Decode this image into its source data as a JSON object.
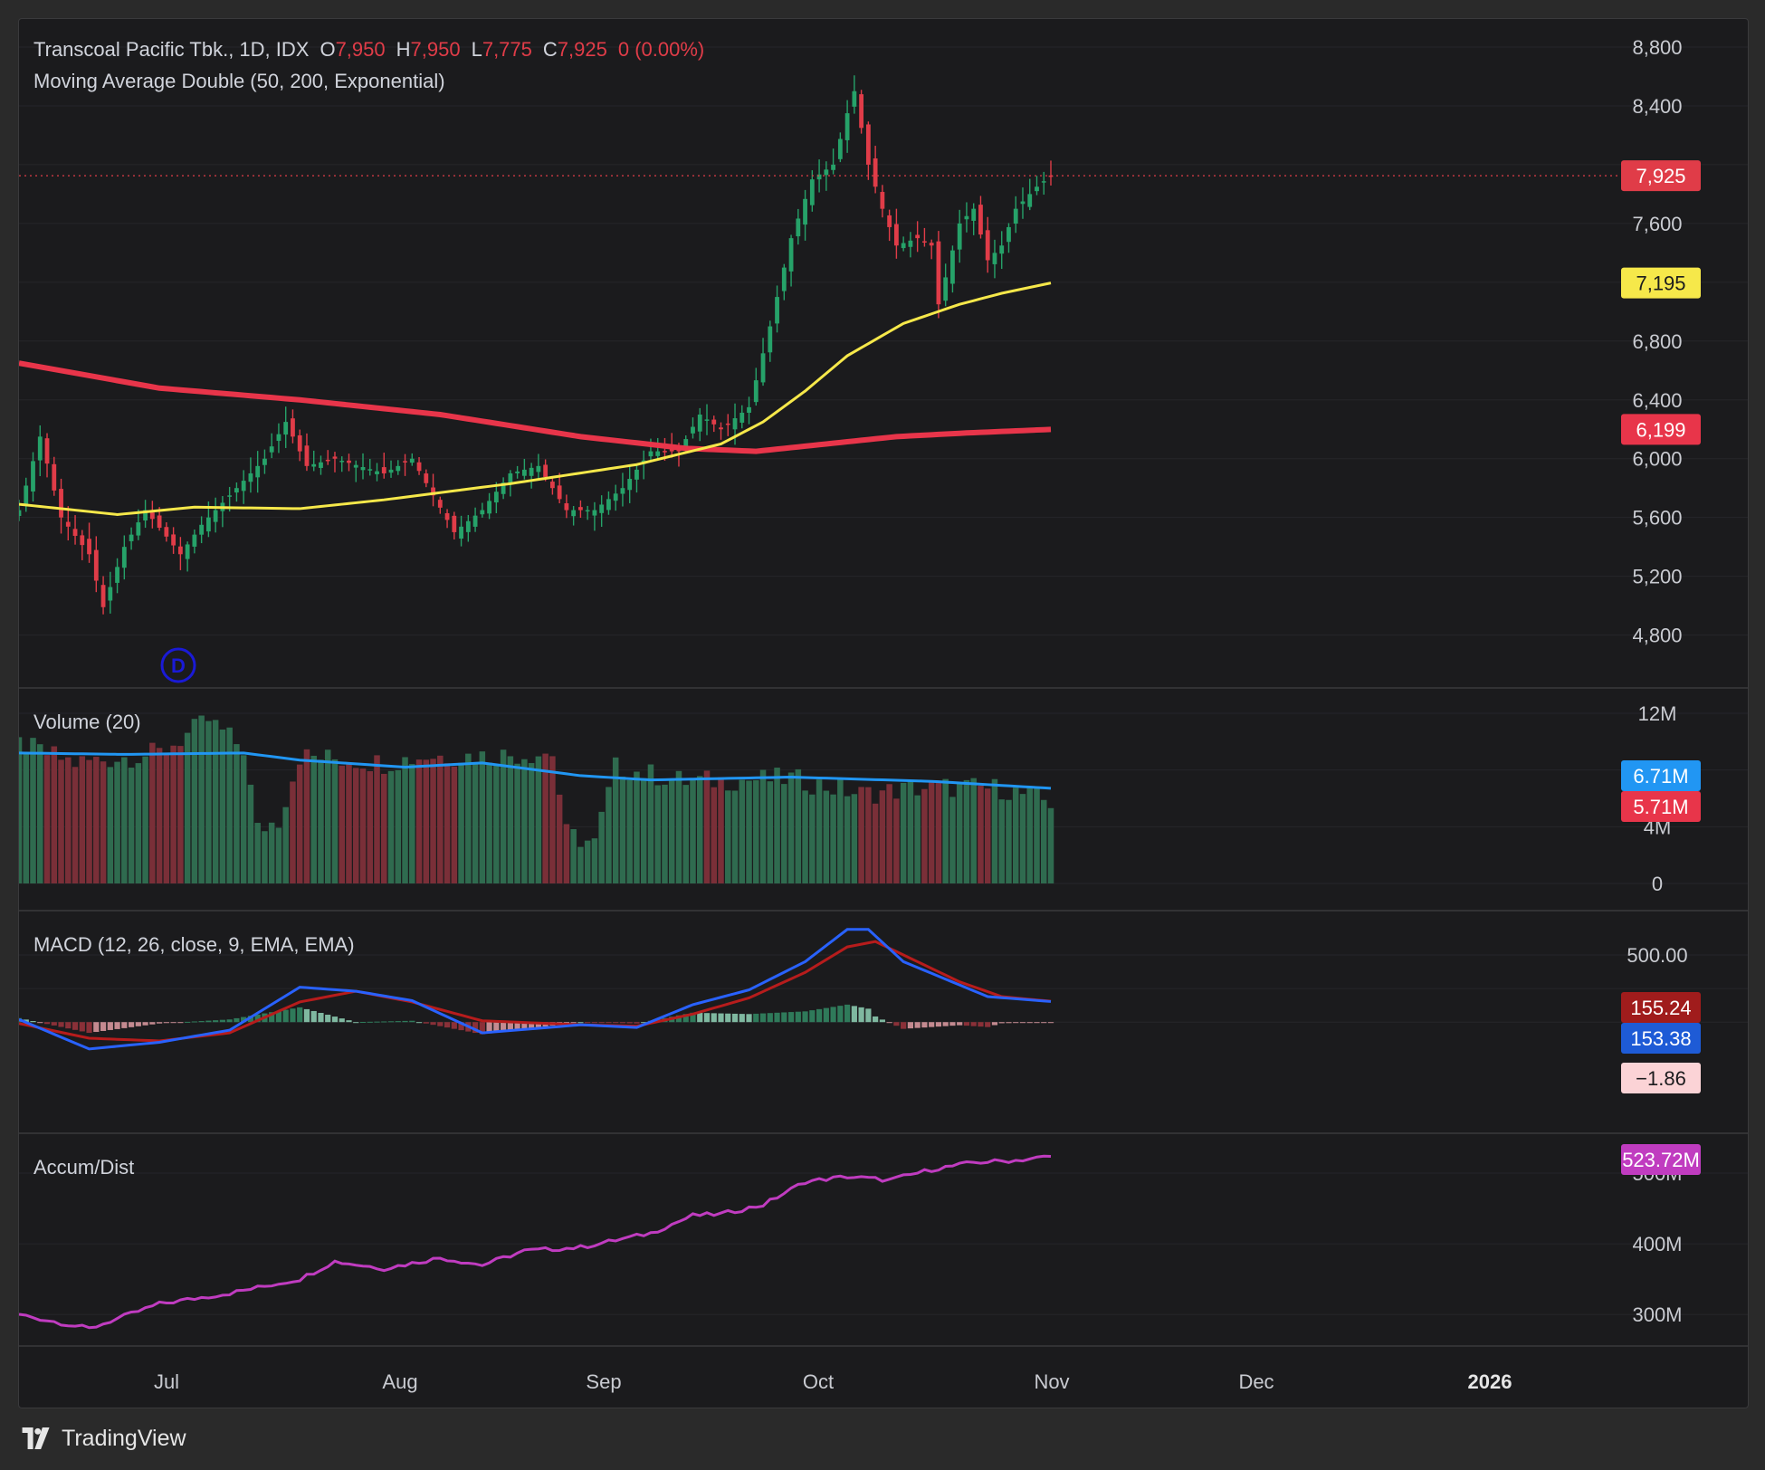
{
  "header": {
    "symbol_line": "Transcoal Pacific Tbk., 1D, IDX",
    "open_label": "O",
    "open_value": "7,950",
    "high_label": "H",
    "high_value": "7,950",
    "low_label": "L",
    "low_value": "7,775",
    "close_label": "C",
    "close_value": "7,925",
    "change_value": "0 (0.00%)",
    "indicator_line": "Moving Average Double (50, 200, Exponential)"
  },
  "panes": {
    "volume_label": "Volume (20)",
    "macd_label": "MACD (12, 26, close, 9, EMA, EMA)",
    "ad_label": "Accum/Dist"
  },
  "badges": {
    "last_price": "7,925",
    "ema50": "7,195",
    "ema200": "6,199",
    "vol_ma": "6.71M",
    "vol_last": "5.71M",
    "macd_signal": "155.24",
    "macd_line": "153.38",
    "macd_hist": "−1.86",
    "ad_value": "523.72M"
  },
  "axes": {
    "price_ticks": [
      "8,800",
      "8,400",
      "7,600",
      "6,800",
      "6,400",
      "6,000",
      "5,600",
      "5,200",
      "4,800"
    ],
    "volume_ticks": [
      "12M",
      "4M",
      "0"
    ],
    "macd_ticks": [
      "500.00"
    ],
    "ad_ticks": [
      "500M",
      "400M",
      "300M"
    ],
    "date_labels": [
      "Jul",
      "Aug",
      "Sep",
      "Oct",
      "Nov",
      "Dec",
      "2026"
    ]
  },
  "marker": {
    "letter": "D"
  },
  "footer": {
    "brand": "TradingView"
  },
  "colors": {
    "up": "#26a269",
    "down": "#e03c48",
    "ema50": "#f6e84a",
    "ema200": "#e8354a",
    "macd": "#2962ff",
    "signal": "#b71c1c",
    "ad": "#c03cc0",
    "vol_ma": "#2196f3"
  },
  "chart_data": {
    "type": "candlestick",
    "title": "Transcoal Pacific Tbk., 1D, IDX",
    "price_range": [
      4600,
      8900
    ],
    "series": [
      {
        "name": "Moving Average Double (50, 200, Exponential)",
        "values": [
          7195,
          6199
        ]
      },
      {
        "name": "Volume (20)",
        "values": [
          6.71,
          5.71
        ],
        "unit": "M"
      },
      {
        "name": "MACD (12, 26, close, 9, EMA, EMA)",
        "values": [
          153.38,
          155.24,
          -1.86
        ]
      },
      {
        "name": "Accum/Dist",
        "values": [
          523.72
        ],
        "unit": "M"
      }
    ],
    "ohlc_keyframes_price": [
      [
        0,
        5650
      ],
      [
        3,
        6150
      ],
      [
        6,
        5600
      ],
      [
        10,
        5350
      ],
      [
        12,
        4990
      ],
      [
        15,
        5400
      ],
      [
        18,
        5650
      ],
      [
        23,
        5350
      ],
      [
        26,
        5550
      ],
      [
        30,
        5750
      ],
      [
        35,
        6000
      ],
      [
        38,
        6250
      ],
      [
        41,
        5950
      ],
      [
        45,
        6000
      ],
      [
        52,
        5900
      ],
      [
        56,
        6000
      ],
      [
        59,
        5750
      ],
      [
        62,
        5500
      ],
      [
        66,
        5650
      ],
      [
        70,
        5900
      ],
      [
        74,
        5950
      ],
      [
        78,
        5650
      ],
      [
        82,
        5650
      ],
      [
        86,
        5800
      ],
      [
        90,
        6050
      ],
      [
        94,
        6050
      ],
      [
        97,
        6300
      ],
      [
        100,
        6200
      ],
      [
        104,
        6350
      ],
      [
        107,
        6900
      ],
      [
        110,
        7500
      ],
      [
        113,
        7900
      ],
      [
        116,
        8000
      ],
      [
        118,
        8350
      ],
      [
        119,
        8500
      ],
      [
        121,
        8000
      ],
      [
        123,
        7700
      ],
      [
        125,
        7450
      ],
      [
        128,
        7500
      ],
      [
        130,
        7450
      ],
      [
        131,
        7050
      ],
      [
        134,
        7600
      ],
      [
        136,
        7700
      ],
      [
        138,
        7350
      ],
      [
        140,
        7450
      ],
      [
        142,
        7700
      ],
      [
        145,
        7850
      ],
      [
        147,
        7925
      ]
    ],
    "ema50_keyframes_price": [
      [
        0,
        5690
      ],
      [
        14,
        5620
      ],
      [
        25,
        5670
      ],
      [
        40,
        5660
      ],
      [
        52,
        5720
      ],
      [
        70,
        5830
      ],
      [
        88,
        5960
      ],
      [
        100,
        6100
      ],
      [
        106,
        6250
      ],
      [
        112,
        6460
      ],
      [
        118,
        6700
      ],
      [
        126,
        6920
      ],
      [
        134,
        7050
      ],
      [
        140,
        7125
      ],
      [
        147,
        7195
      ]
    ],
    "ema200_keyframes_price": [
      [
        0,
        6650
      ],
      [
        20,
        6480
      ],
      [
        40,
        6400
      ],
      [
        60,
        6300
      ],
      [
        80,
        6150
      ],
      [
        95,
        6070
      ],
      [
        105,
        6050
      ],
      [
        115,
        6100
      ],
      [
        125,
        6150
      ],
      [
        135,
        6175
      ],
      [
        147,
        6199
      ]
    ],
    "volume_keyframes_m": [
      [
        0,
        9.8
      ],
      [
        8,
        8.5
      ],
      [
        20,
        9.2
      ],
      [
        24,
        10.5
      ],
      [
        27,
        11.5
      ],
      [
        32,
        9.5
      ],
      [
        34,
        3.8
      ],
      [
        37,
        4.5
      ],
      [
        40,
        9.0
      ],
      [
        52,
        8.5
      ],
      [
        58,
        9.0
      ],
      [
        66,
        9.0
      ],
      [
        76,
        9.2
      ],
      [
        78,
        3.5
      ],
      [
        82,
        2.8
      ],
      [
        85,
        8.2
      ],
      [
        95,
        7.2
      ],
      [
        110,
        7.4
      ],
      [
        120,
        6.3
      ],
      [
        130,
        6.8
      ],
      [
        140,
        6.7
      ],
      [
        147,
        5.71
      ]
    ],
    "volume_ma_keyframes_m": [
      [
        0,
        9.2
      ],
      [
        15,
        9.1
      ],
      [
        32,
        9.2
      ],
      [
        40,
        8.7
      ],
      [
        55,
        8.2
      ],
      [
        66,
        8.5
      ],
      [
        80,
        7.6
      ],
      [
        90,
        7.3
      ],
      [
        110,
        7.5
      ],
      [
        130,
        7.2
      ],
      [
        147,
        6.71
      ]
    ],
    "macd_keyframes": [
      [
        0,
        20
      ],
      [
        10,
        -200
      ],
      [
        20,
        -150
      ],
      [
        30,
        -60
      ],
      [
        40,
        260
      ],
      [
        48,
        230
      ],
      [
        56,
        160
      ],
      [
        66,
        -80
      ],
      [
        80,
        -20
      ],
      [
        88,
        -40
      ],
      [
        96,
        130
      ],
      [
        104,
        240
      ],
      [
        112,
        450
      ],
      [
        118,
        690
      ],
      [
        121,
        690
      ],
      [
        126,
        450
      ],
      [
        132,
        320
      ],
      [
        138,
        190
      ],
      [
        147,
        153.38
      ]
    ],
    "signal_keyframes": [
      [
        0,
        -10
      ],
      [
        10,
        -120
      ],
      [
        20,
        -140
      ],
      [
        30,
        -80
      ],
      [
        40,
        150
      ],
      [
        48,
        230
      ],
      [
        56,
        150
      ],
      [
        66,
        10
      ],
      [
        80,
        -20
      ],
      [
        88,
        -30
      ],
      [
        96,
        60
      ],
      [
        104,
        180
      ],
      [
        112,
        370
      ],
      [
        118,
        560
      ],
      [
        122,
        600
      ],
      [
        128,
        450
      ],
      [
        134,
        300
      ],
      [
        140,
        190
      ],
      [
        147,
        155.24
      ]
    ],
    "ad_keyframes_m": [
      [
        0,
        300
      ],
      [
        10,
        280
      ],
      [
        20,
        315
      ],
      [
        30,
        330
      ],
      [
        40,
        350
      ],
      [
        45,
        375
      ],
      [
        52,
        365
      ],
      [
        60,
        380
      ],
      [
        66,
        370
      ],
      [
        72,
        390
      ],
      [
        80,
        395
      ],
      [
        90,
        415
      ],
      [
        96,
        440
      ],
      [
        100,
        442
      ],
      [
        106,
        455
      ],
      [
        112,
        488
      ],
      [
        118,
        495
      ],
      [
        124,
        490
      ],
      [
        130,
        505
      ],
      [
        136,
        515
      ],
      [
        142,
        518
      ],
      [
        147,
        523.72
      ]
    ]
  }
}
